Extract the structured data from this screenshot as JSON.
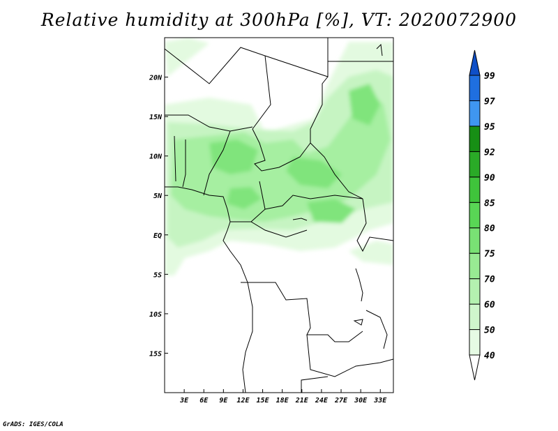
{
  "title": "Relative humidity at 300hPa [%], VT: 2020072900",
  "credit": "GrADS: IGES/COLA",
  "map": {
    "lon_range": [
      0,
      35
    ],
    "lat_range": [
      -20,
      25
    ],
    "lon_ticks": [
      "3E",
      "6E",
      "9E",
      "12E",
      "15E",
      "18E",
      "21E",
      "24E",
      "27E",
      "30E",
      "33E"
    ],
    "lat_ticks": [
      "20N",
      "15N",
      "10N",
      "5N",
      "EQ",
      "5S",
      "10S",
      "15S"
    ]
  },
  "colorbar": {
    "levels": [
      "40",
      "50",
      "60",
      "70",
      "75",
      "80",
      "85",
      "90",
      "92",
      "95",
      "97",
      "99"
    ],
    "colors": [
      "#ffffff",
      "#e6fbe4",
      "#cff6cc",
      "#b4f1b0",
      "#98eb93",
      "#79e274",
      "#59d655",
      "#3fc43b",
      "#2aaa27",
      "#178f15",
      "#3f96f0",
      "#1f6fe0",
      "#0f4fc7"
    ]
  }
}
